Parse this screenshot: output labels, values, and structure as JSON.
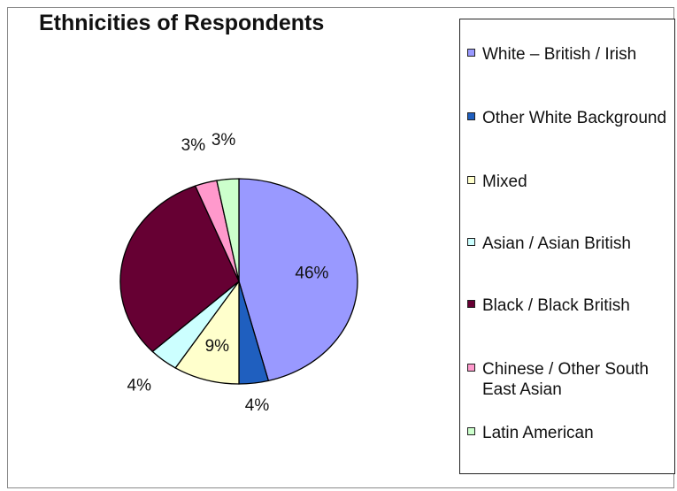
{
  "chart_data": {
    "type": "pie",
    "title": "Ethnicities of Respondents",
    "slices": [
      {
        "label": "White – British / Irish",
        "value": 46,
        "value_label": "46%",
        "color": "#9999ff"
      },
      {
        "label": "Other White Background",
        "value": 4,
        "value_label": "4%",
        "color": "#1f5fbf"
      },
      {
        "label": "Mixed",
        "value": 9,
        "value_label": "9%",
        "color": "#ffffcc"
      },
      {
        "label": "Asian / Asian British",
        "value": 4,
        "value_label": "4%",
        "color": "#ccffff"
      },
      {
        "label": "Black / Black British",
        "value": 31,
        "value_label": "",
        "color": "#660033"
      },
      {
        "label": "Chinese / Other South East Asian",
        "value": 3,
        "value_label": "3%",
        "color": "#ff99cc"
      },
      {
        "label": "Latin American",
        "value": 3,
        "value_label": "3%",
        "color": "#ccffcc"
      }
    ],
    "legend_position": "right",
    "start_angle": "12 o'clock",
    "direction": "clockwise"
  }
}
